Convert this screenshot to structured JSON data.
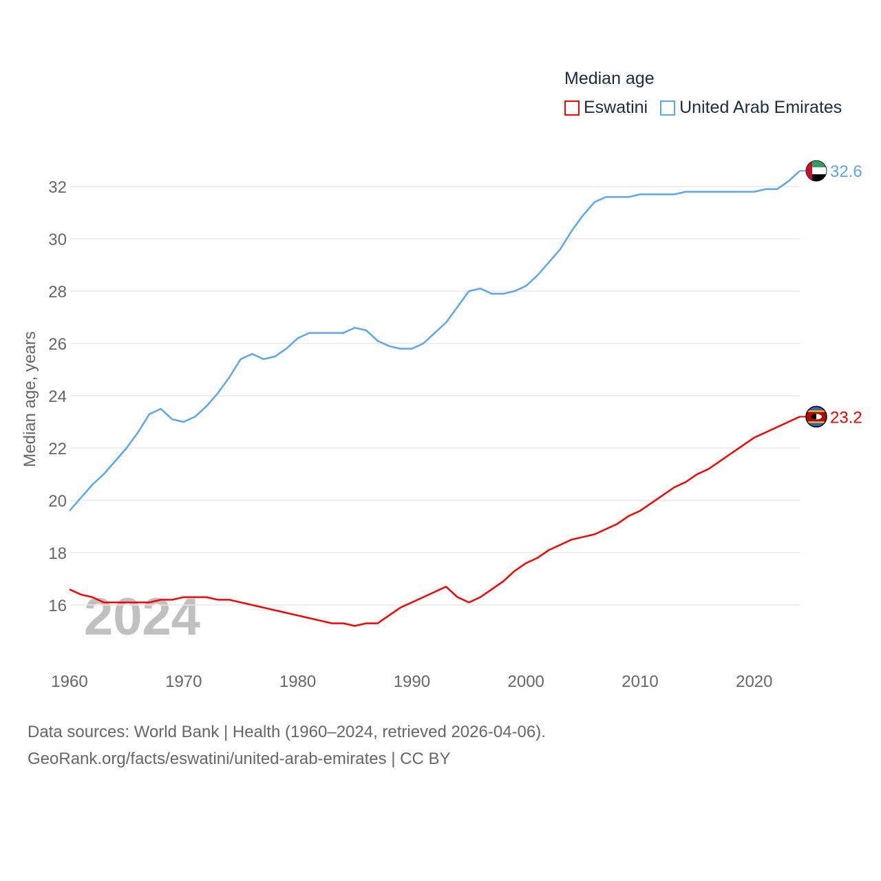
{
  "chart_data": {
    "type": "line",
    "title": "Median age",
    "ylabel": "Median age, years",
    "xlabel": "",
    "xlim": [
      1960,
      2024
    ],
    "ylim": [
      14.5,
      33
    ],
    "x_ticks": [
      "1960",
      "1970",
      "1980",
      "1990",
      "2000",
      "2010",
      "2020"
    ],
    "y_ticks": [
      "16",
      "18",
      "20",
      "22",
      "24",
      "26",
      "28",
      "30",
      "32"
    ],
    "grid": true,
    "legend_position": "top-right",
    "year_watermark": "2024",
    "x": [
      1960,
      1961,
      1962,
      1963,
      1964,
      1965,
      1966,
      1967,
      1968,
      1969,
      1970,
      1971,
      1972,
      1973,
      1974,
      1975,
      1976,
      1977,
      1978,
      1979,
      1980,
      1981,
      1982,
      1983,
      1984,
      1985,
      1986,
      1987,
      1988,
      1989,
      1990,
      1991,
      1992,
      1993,
      1994,
      1995,
      1996,
      1997,
      1998,
      1999,
      2000,
      2001,
      2002,
      2003,
      2004,
      2005,
      2006,
      2007,
      2008,
      2009,
      2010,
      2011,
      2012,
      2013,
      2014,
      2015,
      2016,
      2017,
      2018,
      2019,
      2020,
      2021,
      2022,
      2023,
      2024
    ],
    "series": [
      {
        "name": "Eswatini",
        "color": "#ff0000",
        "end_label": "23.2",
        "values": [
          16.6,
          16.4,
          16.3,
          16.1,
          16.1,
          16.1,
          16.1,
          16.1,
          16.2,
          16.2,
          16.3,
          16.3,
          16.3,
          16.2,
          16.2,
          16.1,
          16.0,
          15.9,
          15.8,
          15.7,
          15.6,
          15.5,
          15.4,
          15.3,
          15.3,
          15.2,
          15.3,
          15.3,
          15.6,
          15.9,
          16.1,
          16.3,
          16.5,
          16.7,
          16.3,
          16.1,
          16.3,
          16.6,
          16.9,
          17.3,
          17.6,
          17.8,
          18.1,
          18.3,
          18.5,
          18.6,
          18.7,
          18.9,
          19.1,
          19.4,
          19.6,
          19.9,
          20.2,
          20.5,
          20.7,
          21.0,
          21.2,
          21.5,
          21.8,
          22.1,
          22.4,
          22.6,
          22.8,
          23.0,
          23.2
        ]
      },
      {
        "name": "United Arab Emirates",
        "color": "#5ba7ee",
        "end_label": "32.6",
        "values": [
          19.6,
          20.1,
          20.6,
          21.0,
          21.5,
          22.0,
          22.6,
          23.3,
          23.5,
          23.1,
          23.0,
          23.2,
          23.6,
          24.1,
          24.7,
          25.4,
          25.6,
          25.4,
          25.5,
          25.8,
          26.2,
          26.4,
          26.4,
          26.4,
          26.4,
          26.6,
          26.5,
          26.1,
          25.9,
          25.8,
          25.8,
          26.0,
          26.4,
          26.8,
          27.4,
          28.0,
          28.1,
          27.9,
          27.9,
          28.0,
          28.2,
          28.6,
          29.1,
          29.6,
          30.3,
          30.9,
          31.4,
          31.6,
          31.6,
          31.6,
          31.7,
          31.7,
          31.7,
          31.7,
          31.8,
          31.8,
          31.8,
          31.8,
          31.8,
          31.8,
          31.8,
          31.9,
          31.9,
          32.2,
          32.6
        ]
      }
    ]
  },
  "footer": {
    "line1": "Data sources: World Bank | Health (1960–2024, retrieved 2026-04-06).",
    "line2": "GeoRank.org/facts/eswatini/united-arab-emirates | CC BY"
  }
}
